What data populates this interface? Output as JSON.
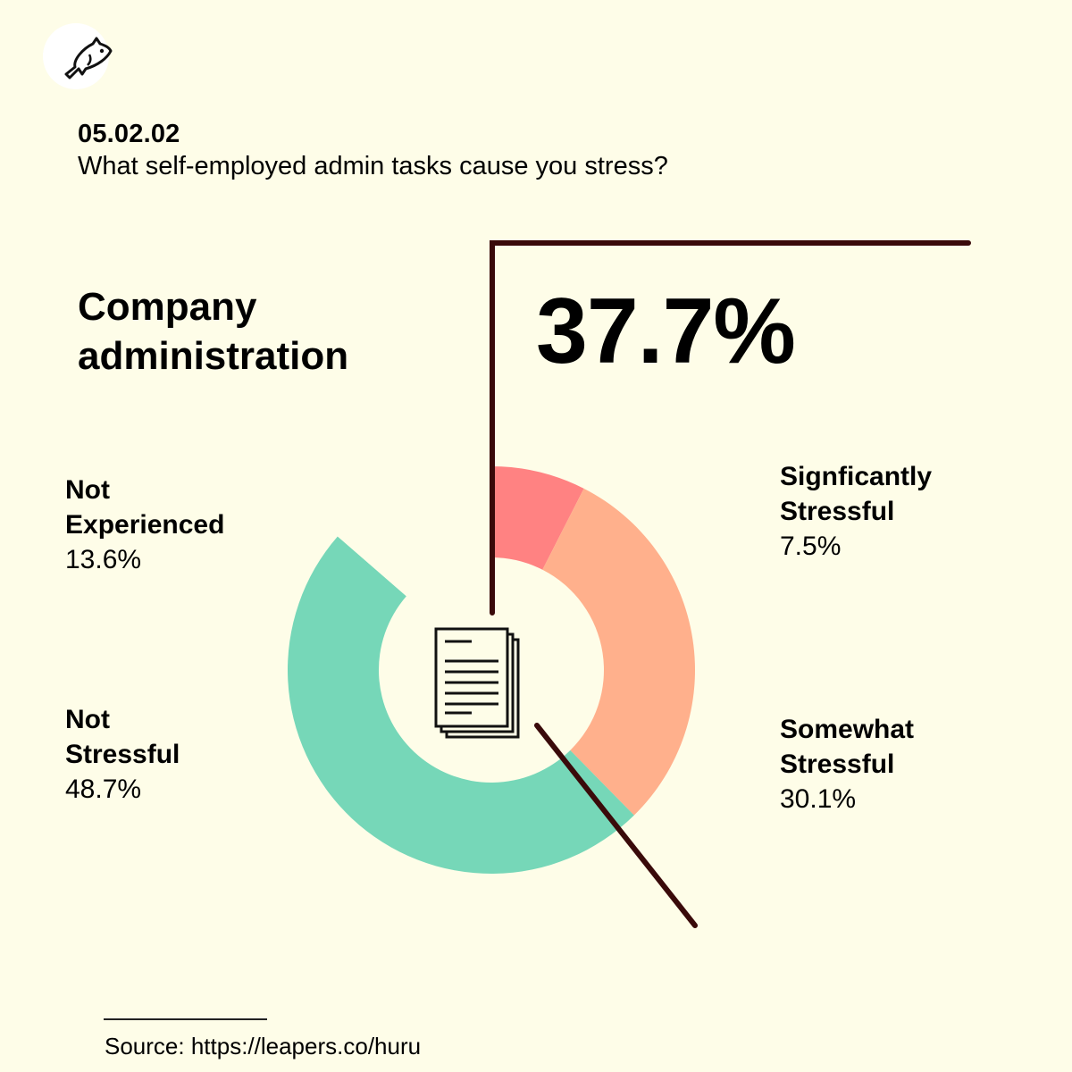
{
  "header": {
    "code": "05.02.02",
    "question": "What self-employed admin tasks cause you stress?"
  },
  "logo_icon": "fish-icon",
  "category": "Company administration",
  "highlight": {
    "value": "37.7%"
  },
  "center_icon": "document-stack-icon",
  "colors": {
    "background": "#fefde8",
    "leader_line": "#3a0a0a",
    "significantly": "#ff8282",
    "somewhat": "#ffb08c",
    "not_stressful": "#76d7b8",
    "not_experienced": "#fefde8"
  },
  "chart_data": {
    "type": "pie",
    "variant": "donut",
    "categories": [
      "Signficantly Stressful",
      "Somewhat Stressful",
      "Not Stressful",
      "Not Experienced"
    ],
    "values": [
      7.5,
      30.1,
      48.7,
      13.6
    ],
    "value_labels": [
      "7.5%",
      "30.1%",
      "48.7%",
      "13.6%"
    ],
    "label_names": [
      [
        "Signficantly",
        "Stressful"
      ],
      [
        "Somewhat",
        "Stressful"
      ],
      [
        "Not",
        "Stressful"
      ],
      [
        "Not",
        "Experienced"
      ]
    ],
    "series_colors": [
      "#ff8282",
      "#ffb08c",
      "#76d7b8",
      "#fefde8"
    ],
    "unit": "%"
  },
  "source": {
    "text": "Source: https://leapers.co/huru"
  }
}
